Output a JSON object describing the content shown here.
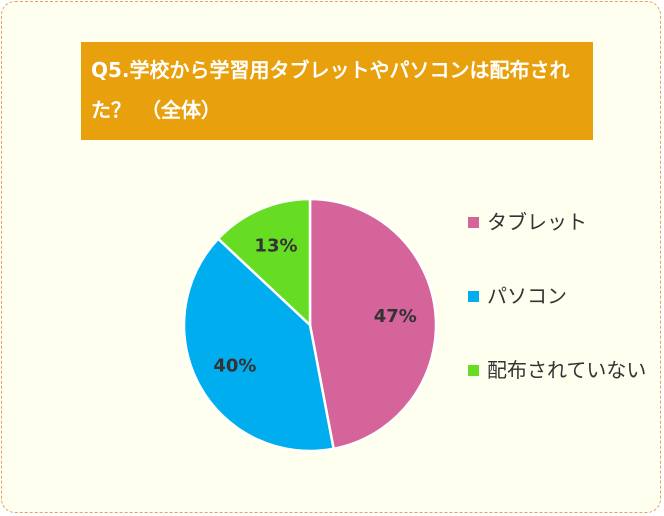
{
  "chart_data": {
    "type": "pie",
    "title": "Q5.学校から学習用タブレットやパソコンは配布された？　（全体）",
    "categories": [
      "タブレット",
      "パソコン",
      "配布されていない"
    ],
    "values": [
      47,
      40,
      13
    ],
    "value_labels": [
      "47%",
      "40%",
      "13%"
    ],
    "colors": [
      "#d4649a",
      "#00adef",
      "#66dd22"
    ]
  }
}
